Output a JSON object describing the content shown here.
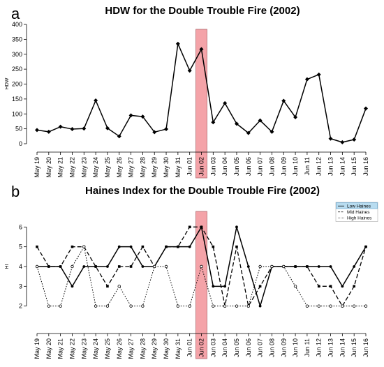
{
  "chart_data": [
    {
      "panel": "a",
      "type": "line",
      "title": "HDW for the Double Trouble Fire (2002)",
      "ylabel": "HDW",
      "xlabel": "",
      "ylim": [
        0,
        400
      ],
      "yticks": [
        0,
        50,
        100,
        150,
        200,
        250,
        300,
        350,
        400
      ],
      "categories": [
        "May 19",
        "May 20",
        "May 21",
        "May 22",
        "May 23",
        "May 24",
        "May 25",
        "May 26",
        "May 27",
        "May 28",
        "May 29",
        "May 30",
        "May 31",
        "Jun 01",
        "Jun 02",
        "Jun 03",
        "Jun 04",
        "Jun 05",
        "Jun 06",
        "Jun 07",
        "Jun 08",
        "Jun 09",
        "Jun 10",
        "Jun 11",
        "Jun 12",
        "Jun 13",
        "Jun 14",
        "Jun 15",
        "Jun 16"
      ],
      "highlight_category": "Jun 02",
      "series": [
        {
          "values": [
            46,
            40,
            57,
            49,
            51,
            145,
            52,
            25,
            95,
            91,
            39,
            49,
            335,
            245,
            317,
            72,
            136,
            67,
            36,
            78,
            40,
            144,
            89,
            216,
            232,
            17,
            5,
            14,
            118
          ]
        }
      ]
    },
    {
      "panel": "b",
      "type": "line",
      "title": "Haines Index for the Double Trouble Fire (2002)",
      "ylabel": "HI",
      "xlabel": "",
      "ylim": [
        1,
        7
      ],
      "yticks": [
        2,
        3,
        4,
        5,
        6
      ],
      "categories": [
        "May 19",
        "May 20",
        "May 21",
        "May 22",
        "May 23",
        "May 24",
        "May 25",
        "May 26",
        "May 27",
        "May 28",
        "May 29",
        "May 30",
        "May 31",
        "Jun 01",
        "Jun 02",
        "Jun 03",
        "Jun 04",
        "Jun 05",
        "Jun 06",
        "Jun 07",
        "Jun 08",
        "Jun 09",
        "Jun 10",
        "Jun 11",
        "Jun 12",
        "Jun 13",
        "Jun 14",
        "Jun 15",
        "Jun 16"
      ],
      "highlight_category": "Jun 02",
      "legend_position": "top-right",
      "series": [
        {
          "name": "Low Haines",
          "style": "solid",
          "values": [
            4,
            4,
            4,
            3,
            4,
            4,
            4,
            5,
            5,
            4,
            4,
            5,
            5,
            5,
            6,
            3,
            3,
            6,
            4,
            2,
            4,
            4,
            4,
            4,
            4,
            4,
            3,
            4,
            5
          ]
        },
        {
          "name": "Mid Haines",
          "style": "dashed",
          "values": [
            5,
            4,
            4,
            5,
            5,
            4,
            3,
            4,
            4,
            5,
            4,
            5,
            5,
            6,
            6,
            5,
            2,
            5,
            2,
            3,
            4,
            4,
            4,
            4,
            3,
            3,
            2,
            3,
            5
          ]
        },
        {
          "name": "High Haines",
          "style": "dotted",
          "values": [
            4,
            2,
            2,
            4,
            5,
            2,
            2,
            3,
            2,
            2,
            4,
            4,
            2,
            2,
            4,
            2,
            2,
            2,
            2,
            4,
            4,
            4,
            3,
            2,
            2,
            2,
            2,
            2,
            2
          ]
        }
      ]
    }
  ],
  "colors": {
    "highlight_fill": "#f4a3a8",
    "highlight_stroke": "#b06a6e",
    "legend_highlight": "#b8dcf0",
    "legend_highlight_stroke": "#5aa0cc",
    "line": "#000000"
  }
}
